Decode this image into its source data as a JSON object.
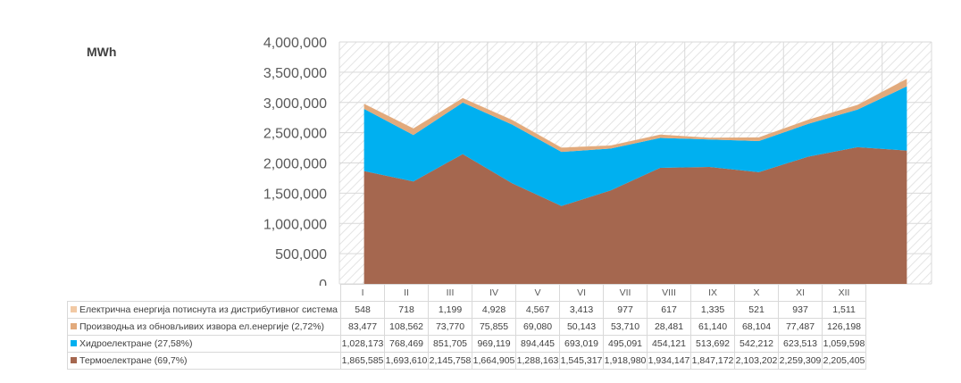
{
  "chart_data": {
    "type": "area",
    "stacked": true,
    "ylabel": "MWh",
    "ylim": [
      0,
      4000000
    ],
    "yticks": [
      "0",
      "500,000",
      "1,000,000",
      "1,500,000",
      "2,000,000",
      "2,500,000",
      "3,000,000",
      "3,500,000",
      "4,000,000"
    ],
    "grid": true,
    "categories": [
      "I",
      "II",
      "III",
      "IV",
      "V",
      "VI",
      "VII",
      "VIII",
      "IX",
      "X",
      "XI",
      "XII"
    ],
    "series": [
      {
        "name": "Термоелектране (69,7%)",
        "color": "#a5674f",
        "values": [
          1865585,
          1693610,
          2145758,
          1664905,
          1288163,
          1545317,
          1918980,
          1934147,
          1847172,
          2103202,
          2259309,
          2205405
        ],
        "labels": [
          "1,865,585",
          "1,693,610",
          "2,145,758",
          "1,664,905",
          "1,288,163",
          "1,545,317",
          "1,918,980",
          "1,934,147",
          "1,847,172",
          "2,103,202",
          "2,259,309",
          "2,205,405"
        ]
      },
      {
        "name": "Хидроелектране (27,58%)",
        "color": "#00b0f0",
        "values": [
          1028173,
          768469,
          851705,
          969119,
          894445,
          693019,
          495091,
          454121,
          513692,
          542212,
          623513,
          1059598
        ],
        "labels": [
          "1,028,173",
          "768,469",
          "851,705",
          "969,119",
          "894,445",
          "693,019",
          "495,091",
          "454,121",
          "513,692",
          "542,212",
          "623,513",
          "1,059,598"
        ]
      },
      {
        "name": "Производња из обновљивих извора ел.енергије (2,72%)",
        "color": "#e2aa7c",
        "values": [
          83477,
          108562,
          73770,
          75855,
          69080,
          50143,
          53710,
          28481,
          61140,
          68104,
          77487,
          126198
        ],
        "labels": [
          "83,477",
          "108,562",
          "73,770",
          "75,855",
          "69,080",
          "50,143",
          "53,710",
          "28,481",
          "61,140",
          "68,104",
          "77,487",
          "126,198"
        ]
      },
      {
        "name": "Електрична енергија потиснута из дистрибутивног система",
        "color": "#f2c9a4",
        "values": [
          548,
          718,
          1199,
          4928,
          4567,
          3413,
          977,
          617,
          1335,
          521,
          937,
          1511
        ],
        "labels": [
          "548",
          "718",
          "1,199",
          "4,928",
          "4,567",
          "3,413",
          "977",
          "617",
          "1,335",
          "521",
          "937",
          "1,511"
        ]
      }
    ]
  }
}
